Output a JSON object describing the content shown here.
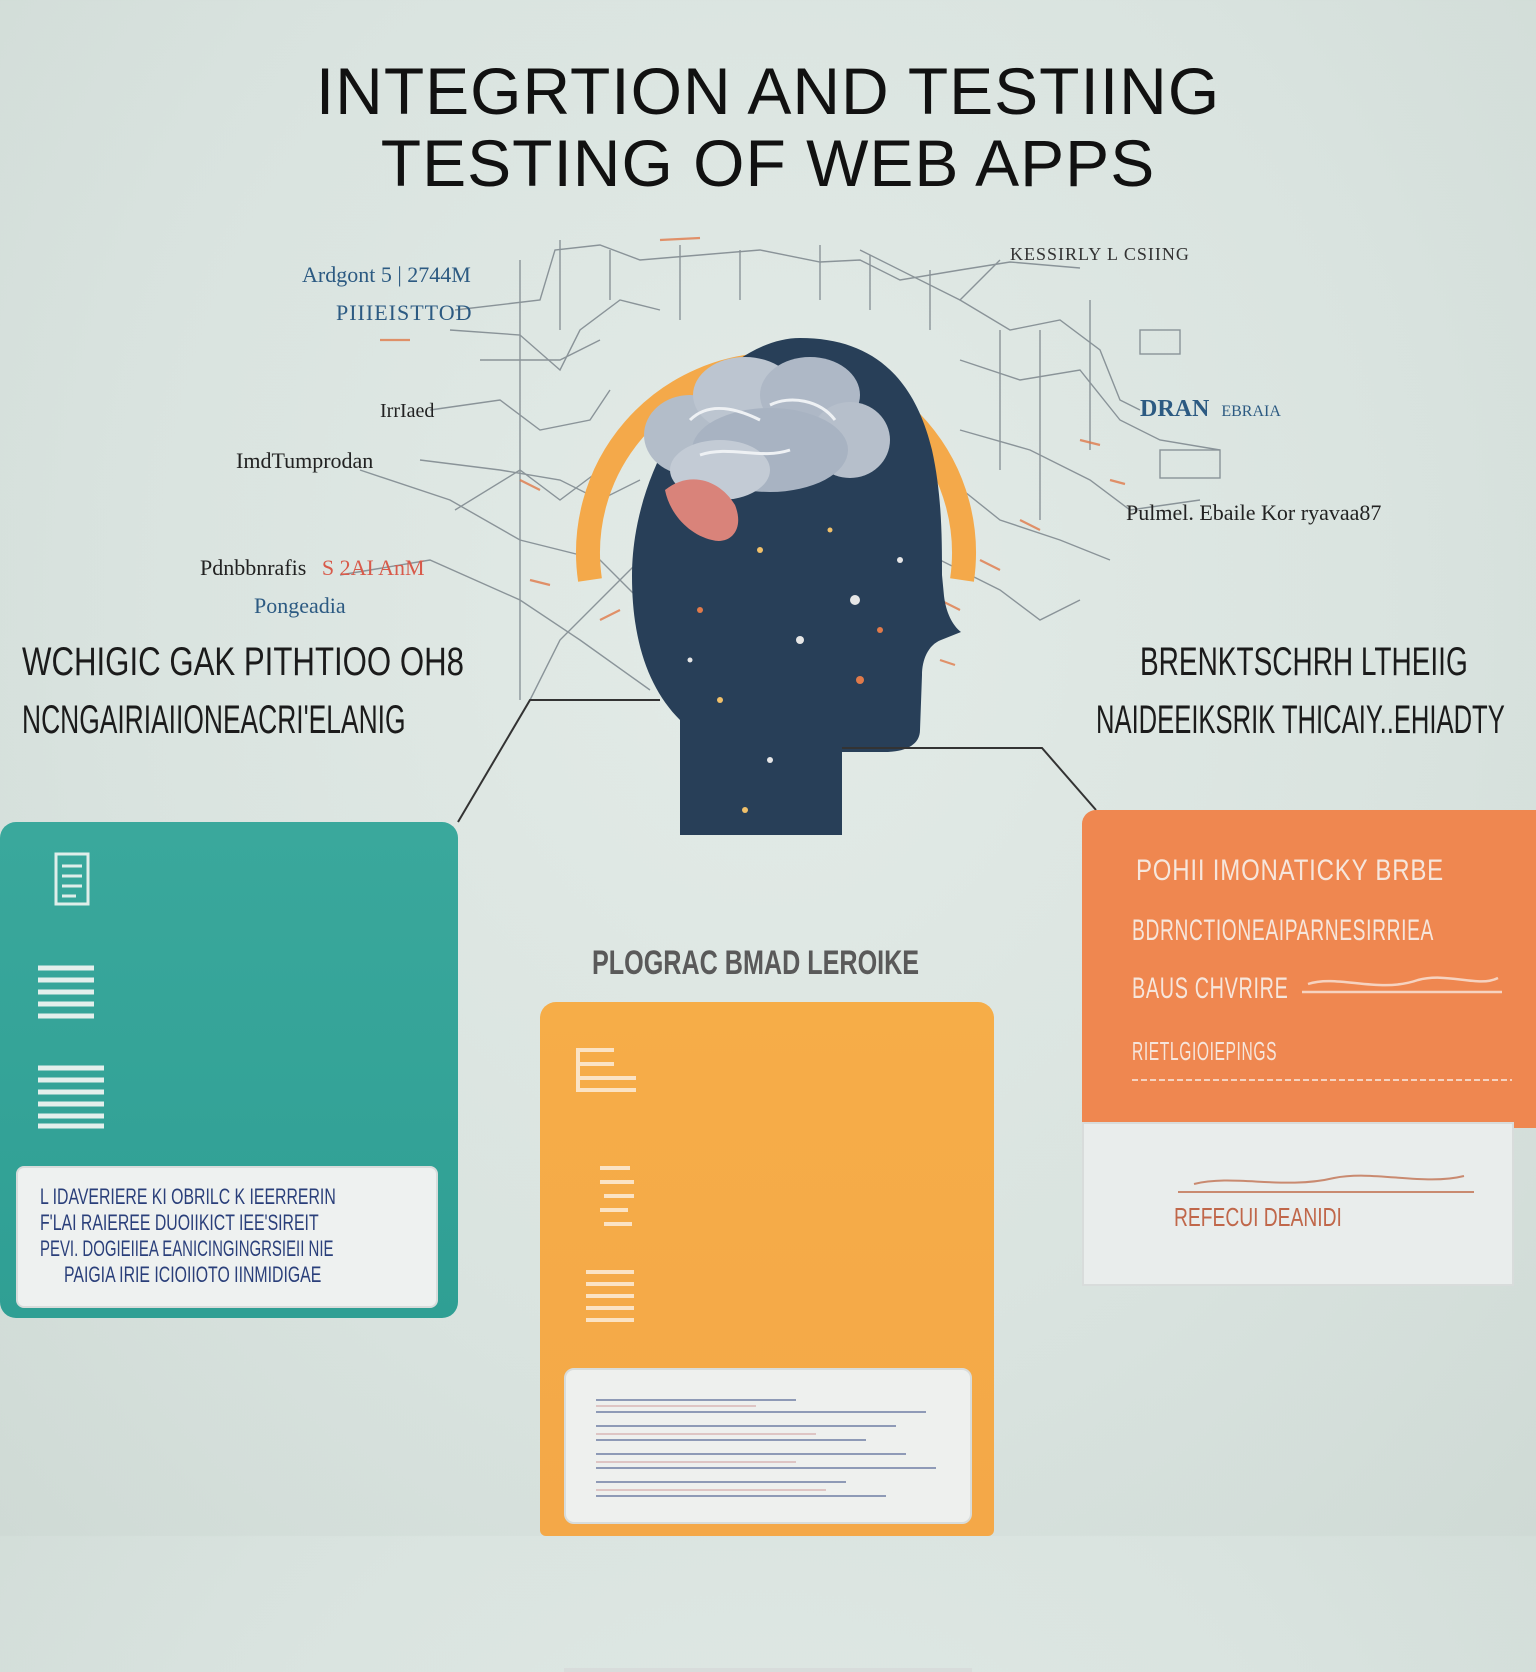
{
  "title": {
    "line1": "INTEGRTION AND TESTIING",
    "line2": "TESTING OF WEB APPS"
  },
  "labels": {
    "top_left_1": "Ardgont 5 | 2744M",
    "top_left_2": "PIIIEISTTOD",
    "left_1": "IrrIaed",
    "left_2": "ImdTumprodan",
    "left_3": "Pdnbbnrafis",
    "left_3_accent": "S 2AI AnM",
    "left_4": "Pongeadia",
    "top_right": "KESSIRLY L CSIING",
    "right_1": "DRAN",
    "right_1_suffix": "EBRAIA",
    "right_2": "Pulmel. Ebaile Kor ryavaa87"
  },
  "section_headings": {
    "left_line1": "WCHIGIC GAK PITHTIOO OH8",
    "left_line2": "NCNGAIRIAIIONEACRI'ELANIG",
    "right_line1": "BRENKTSCHRH  LTHEIIG",
    "right_line2": "NAIDEEIKSRIK THICAIY..EHIADTY",
    "center": "PLOGRAC BMAD LEROIKE"
  },
  "cards": {
    "teal": {
      "color": "#33a398",
      "icons": [
        "document-icon",
        "stack-icon",
        "stack-icon"
      ],
      "box_line1": "L IDAVERIERE KI OBRILC K IEERRERIN",
      "box_line2": "F'LAI RAIEREE  DUOIIKICT IEE'SIREIT",
      "box_line3": "PEVI. DOGIEIIEA  EANICINGINGRSIEII NIE",
      "box_line4": "PAIGIA IRIE ICIOIIOTO  IINMIDIGAE"
    },
    "yellow": {
      "color": "#f5aa48",
      "icons": [
        "flag-icon",
        "list-icon",
        "grid-icon"
      ]
    },
    "orange": {
      "color": "#ef8750",
      "line1": "POHII IMONATICKY BRBE",
      "line2": "BDRNCTIONEAIPARNESIRRIEA",
      "line3": "BAUS CHVRIRE",
      "line4": "RIETLGIOIEPINGS",
      "box_line": "REFECUI DEANIDI"
    }
  },
  "colors": {
    "background": "#dde6e2",
    "head": "#283f58",
    "halo": "#f4a94a",
    "brain": "#a9b4c2",
    "sketch": "#6e7880",
    "label_blue": "#2c5a82",
    "accent_red": "#d85a4a"
  }
}
